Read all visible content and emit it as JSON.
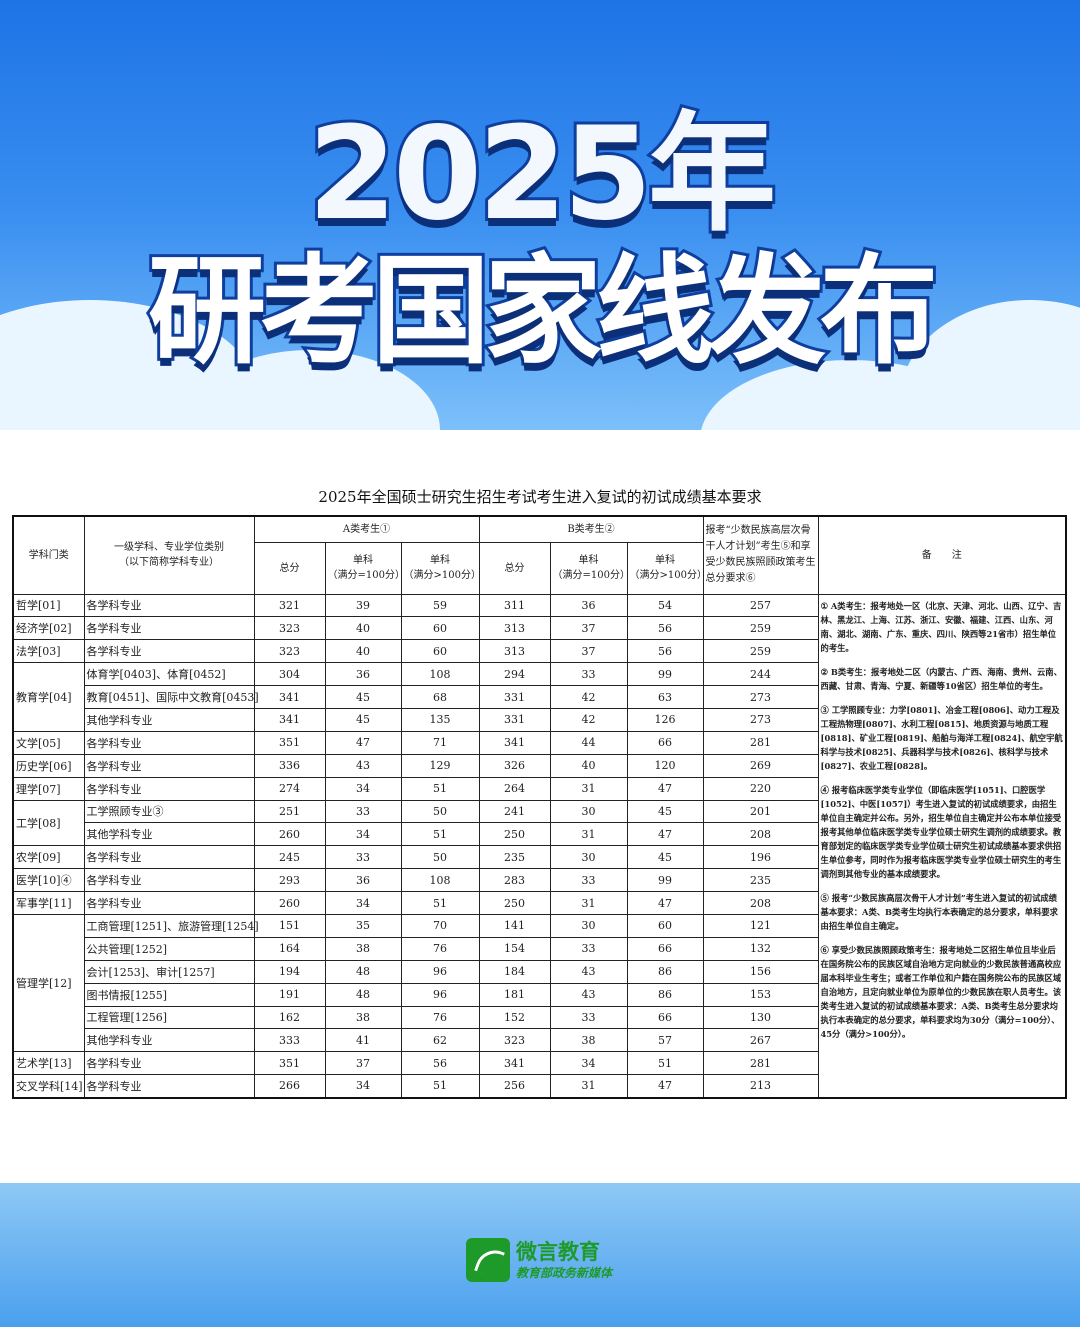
{
  "banner": {
    "year": "2025年",
    "headline": "研考国家线发布"
  },
  "caption": "2025年全国硕士研究生招生考试考生进入复试的初试成绩基本要求",
  "table": {
    "headers": {
      "category": "学科门类",
      "major": "一级学科、专业学位类别",
      "major_sub": "（以下简称学科专业）",
      "a": "A类考生①",
      "b": "B类考生②",
      "total": "总分",
      "single100": "单科",
      "single100_sub": "（满分=100分）",
      "singleOver": "单科",
      "singleOver_sub": "（满分>100分）",
      "minority": "报考“少数民族高层次骨干人才计划”考生⑤和享受少数民族照顾政策考生总分要求⑥",
      "notes": "备　　注"
    },
    "rows": [
      {
        "cat": "哲学[01]",
        "span": 1,
        "major": "各学科专业",
        "v": [
          321,
          39,
          59,
          311,
          36,
          54,
          257
        ]
      },
      {
        "cat": "经济学[02]",
        "span": 1,
        "major": "各学科专业",
        "v": [
          323,
          40,
          60,
          313,
          37,
          56,
          259
        ]
      },
      {
        "cat": "法学[03]",
        "span": 1,
        "major": "各学科专业",
        "v": [
          323,
          40,
          60,
          313,
          37,
          56,
          259
        ]
      },
      {
        "cat": "教育学[04]",
        "span": 3,
        "major": "体育学[0403]、体育[0452]",
        "v": [
          304,
          36,
          108,
          294,
          33,
          99,
          244
        ]
      },
      {
        "major": "教育[0451]、国际中文教育[0453]",
        "v": [
          341,
          45,
          68,
          331,
          42,
          63,
          273
        ]
      },
      {
        "major": "其他学科专业",
        "v": [
          341,
          45,
          135,
          331,
          42,
          126,
          273
        ]
      },
      {
        "cat": "文学[05]",
        "span": 1,
        "major": "各学科专业",
        "v": [
          351,
          47,
          71,
          341,
          44,
          66,
          281
        ]
      },
      {
        "cat": "历史学[06]",
        "span": 1,
        "major": "各学科专业",
        "v": [
          336,
          43,
          129,
          326,
          40,
          120,
          269
        ]
      },
      {
        "cat": "理学[07]",
        "span": 1,
        "major": "各学科专业",
        "v": [
          274,
          34,
          51,
          264,
          31,
          47,
          220
        ]
      },
      {
        "cat": "工学[08]",
        "span": 2,
        "major": "工学照顾专业③",
        "v": [
          251,
          33,
          50,
          241,
          30,
          45,
          201
        ]
      },
      {
        "major": "其他学科专业",
        "v": [
          260,
          34,
          51,
          250,
          31,
          47,
          208
        ]
      },
      {
        "cat": "农学[09]",
        "span": 1,
        "major": "各学科专业",
        "v": [
          245,
          33,
          50,
          235,
          30,
          45,
          196
        ]
      },
      {
        "cat": "医学[10]④",
        "span": 1,
        "major": "各学科专业",
        "v": [
          293,
          36,
          108,
          283,
          33,
          99,
          235
        ]
      },
      {
        "cat": "军事学[11]",
        "span": 1,
        "major": "各学科专业",
        "v": [
          260,
          34,
          51,
          250,
          31,
          47,
          208
        ]
      },
      {
        "cat": "管理学[12]",
        "span": 6,
        "major": "工商管理[1251]、旅游管理[1254]",
        "v": [
          151,
          35,
          70,
          141,
          30,
          60,
          121
        ]
      },
      {
        "major": "公共管理[1252]",
        "v": [
          164,
          38,
          76,
          154,
          33,
          66,
          132
        ]
      },
      {
        "major": "会计[1253]、审计[1257]",
        "v": [
          194,
          48,
          96,
          184,
          43,
          86,
          156
        ]
      },
      {
        "major": "图书情报[1255]",
        "v": [
          191,
          48,
          96,
          181,
          43,
          86,
          153
        ]
      },
      {
        "major": "工程管理[1256]",
        "v": [
          162,
          38,
          76,
          152,
          33,
          66,
          130
        ]
      },
      {
        "major": "其他学科专业",
        "v": [
          333,
          41,
          62,
          323,
          38,
          57,
          267
        ]
      },
      {
        "cat": "艺术学[13]",
        "span": 1,
        "major": "各学科专业",
        "v": [
          351,
          37,
          56,
          341,
          34,
          51,
          281
        ]
      },
      {
        "cat": "交叉学科[14]",
        "span": 1,
        "major": "各学科专业",
        "v": [
          266,
          34,
          51,
          256,
          31,
          47,
          213
        ]
      }
    ],
    "notes": [
      "① A类考生：报考地处一区（北京、天津、河北、山西、辽宁、吉林、黑龙江、上海、江苏、浙江、安徽、福建、江西、山东、河南、湖北、湖南、广东、重庆、四川、陕西等21省市）招生单位的考生。",
      "② B类考生：报考地处二区（内蒙古、广西、海南、贵州、云南、西藏、甘肃、青海、宁夏、新疆等10省区）招生单位的考生。",
      "③ 工学照顾专业：力学[0801]、冶金工程[0806]、动力工程及工程热物理[0807]、水利工程[0815]、地质资源与地质工程[0818]、矿业工程[0819]、船舶与海洋工程[0824]、航空宇航科学与技术[0825]、兵器科学与技术[0826]、核科学与技术[0827]、农业工程[0828]。",
      "④ 报考临床医学类专业学位（即临床医学[1051]、口腔医学[1052]、中医[1057]）考生进入复试的初试成绩要求，由招生单位自主确定并公布。另外，招生单位自主确定并公布本单位接受报考其他单位临床医学类专业学位硕士研究生调剂的成绩要求。教育部划定的临床医学类专业学位硕士研究生初试成绩基本要求供招生单位参考，同时作为报考临床医学类专业学位硕士研究生的考生调剂到其他专业的基本成绩要求。",
      "⑤ 报考“少数民族高层次骨干人才计划”考生进入复试的初试成绩基本要求：A类、B类考生均执行本表确定的总分要求，单科要求由招生单位自主确定。",
      "⑥ 享受少数民族照顾政策考生：报考地处二区招生单位且毕业后在国务院公布的民族区域自治地方定向就业的少数民族普通高校应届本科毕业生考生；或者工作单位和户籍在国务院公布的民族区域自治地方，且定向就业单位为原单位的少数民族在职人员考生。该类考生进入复试的初试成绩基本要求：A类、B类考生总分要求均执行本表确定的总分要求，单科要求均为30分（满分=100分）、45分（满分>100分）。"
    ]
  },
  "footer": {
    "logo_name": "微言教育",
    "logo_sub": "教育部政务新媒体"
  },
  "colors": {
    "banner_blue": "#1e73e6",
    "logo_green": "#1e9a2a"
  }
}
